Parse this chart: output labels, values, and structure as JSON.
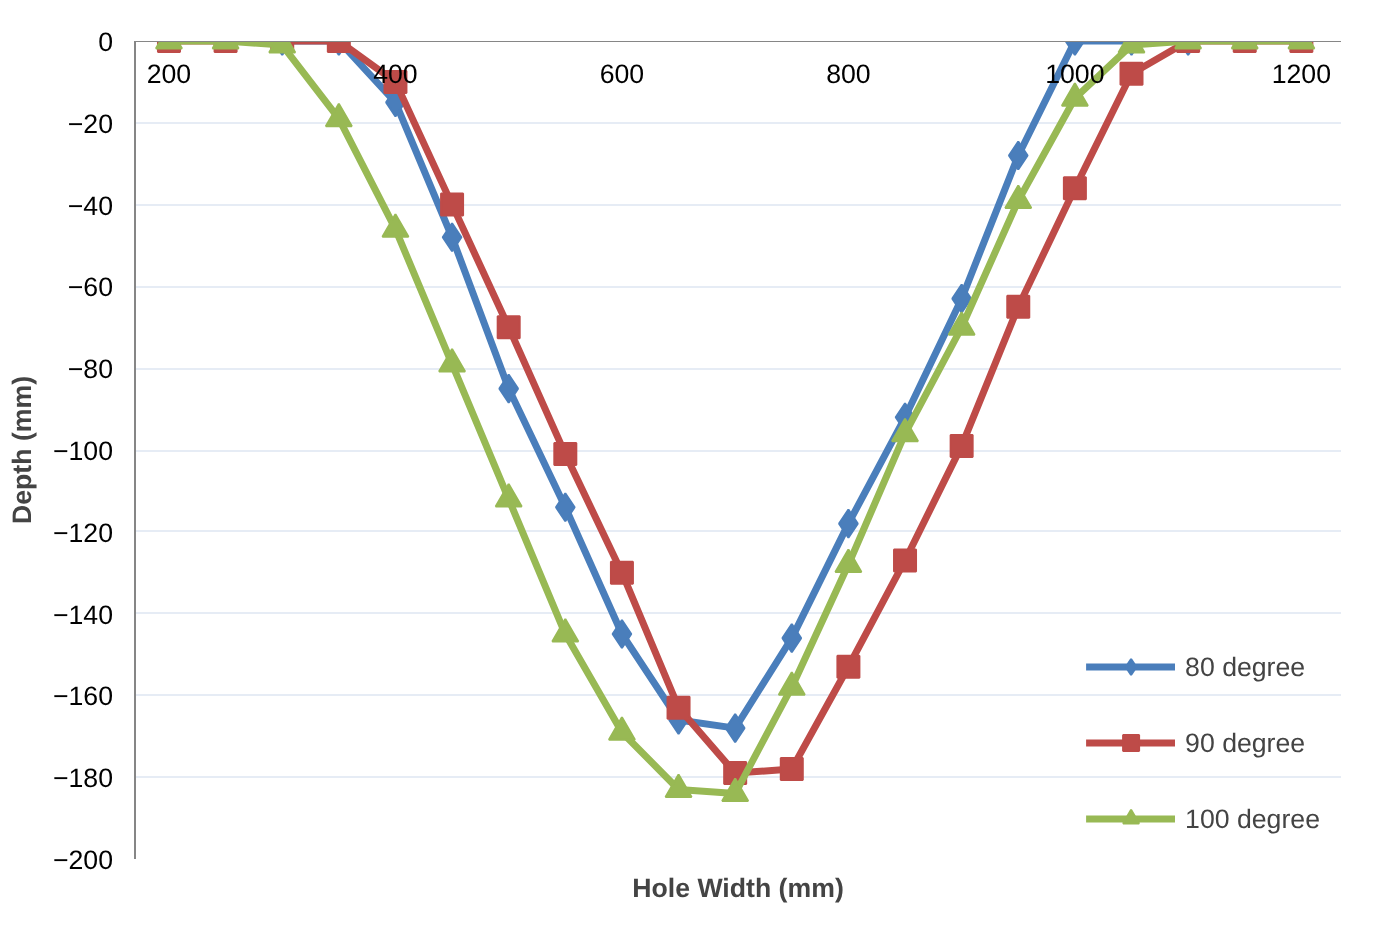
{
  "chart_data": {
    "type": "line",
    "xlabel": "Hole Width (mm)",
    "ylabel": "Depth (mm)",
    "x": [
      200,
      250,
      300,
      350,
      400,
      450,
      500,
      550,
      600,
      650,
      700,
      750,
      800,
      850,
      900,
      950,
      1000,
      1050,
      1100,
      1150,
      1200
    ],
    "xlim": [
      170,
      1235
    ],
    "xticks": [
      200,
      400,
      600,
      800,
      1000,
      1200
    ],
    "ylim": [
      -200,
      0
    ],
    "yticks": [
      -200,
      -180,
      -160,
      -140,
      -120,
      -100,
      -80,
      -60,
      -40,
      -20,
      0
    ],
    "grid": "y",
    "legend": "bottom right",
    "line_style": "solid",
    "series": [
      {
        "name": "80 degree",
        "color": "#4a7ebb",
        "marker": "diamond",
        "values": [
          null,
          null,
          0,
          0,
          -15,
          -48,
          -85,
          -114,
          -145,
          -166,
          -168,
          -146,
          -118,
          -92,
          -63,
          -28,
          0,
          0,
          0,
          null,
          null
        ]
      },
      {
        "name": "90 degree",
        "color": "#be4b48",
        "marker": "square",
        "values": [
          0,
          0,
          0,
          0,
          -10,
          -40,
          -70,
          -101,
          -130,
          -163,
          -179,
          -178,
          -153,
          -127,
          -99,
          -65,
          -36,
          -8,
          0,
          0,
          0
        ]
      },
      {
        "name": "100 degree",
        "color": "#98b954",
        "marker": "triangle",
        "values": [
          0,
          0,
          -1,
          -19,
          -46,
          -79,
          -112,
          -145,
          -169,
          -183,
          -184,
          -158,
          -128,
          -96,
          -70,
          -39,
          -14,
          -1,
          0,
          0,
          0
        ]
      }
    ]
  }
}
